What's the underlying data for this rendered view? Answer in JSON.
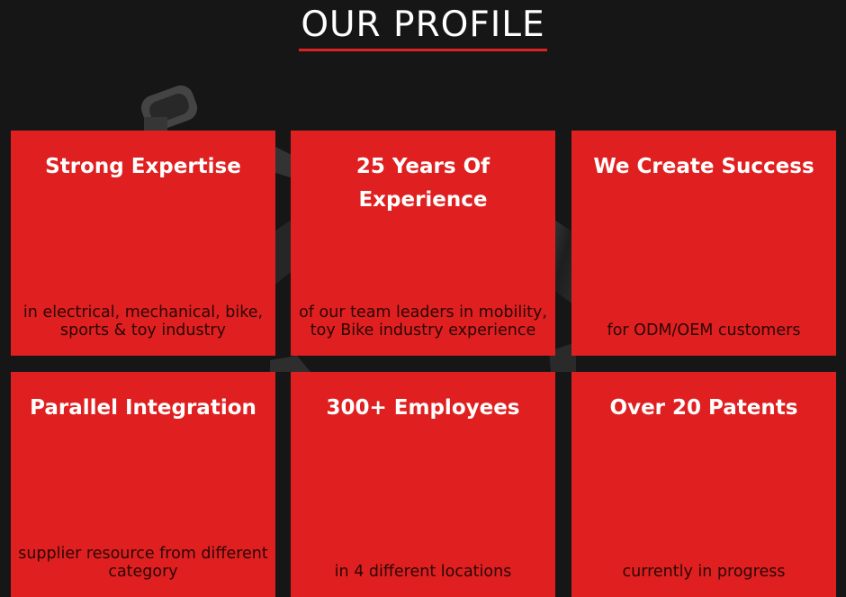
{
  "section": {
    "title": "OUR PROFILE"
  },
  "cards": [
    {
      "title": "Strong Expertise",
      "text": "in electrical, mechanical, bike, sports & toy industry"
    },
    {
      "title": "25 Years Of Experience",
      "text": "of our team leaders in mobility, toy Bike industry experience"
    },
    {
      "title": "We Create Success",
      "text": "for ODM/OEM customers"
    },
    {
      "title": "Parallel Integration",
      "text": "supplier resource from different category"
    },
    {
      "title": "300+ Employees",
      "text": "in 4 different locations"
    },
    {
      "title": "Over 20 Patents",
      "text": "currently in progress"
    }
  ],
  "colors": {
    "background": "#161616",
    "card": "#e02020",
    "accent_underline": "#e02020",
    "title_text": "#ffffff"
  }
}
